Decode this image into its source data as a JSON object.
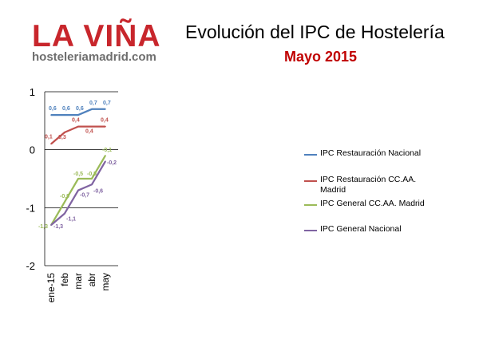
{
  "header": {
    "logo_main": "LA VIÑA",
    "logo_sub": "hosteleriamadrid.com",
    "title": "Evolución del IPC de Hostelería",
    "subtitle": "Mayo 2015"
  },
  "colors": {
    "logo_red": "#c8262c",
    "logo_gray": "#6e6e6e",
    "subtitle_red": "#c00000",
    "gridline": "#000000"
  },
  "chart_data": {
    "type": "line",
    "categories": [
      "ene-15",
      "feb",
      "mar",
      "abr",
      "may"
    ],
    "ylim": [
      -2,
      1
    ],
    "yticks": [
      1,
      0,
      -1,
      -2
    ],
    "ytick_labels": [
      "1",
      "0",
      "-1",
      "-2"
    ],
    "grid": true,
    "legend_position": "right",
    "title": "",
    "xlabel": "",
    "ylabel": "",
    "series": [
      {
        "name": "IPC Restauración Nacional",
        "color": "#4f81bd",
        "values": [
          0.6,
          0.6,
          0.6,
          0.7,
          0.7
        ],
        "labels": [
          "0,6",
          "0,6",
          "0,6",
          "0,7",
          "0,7"
        ]
      },
      {
        "name": "IPC Restauración CC.AA. Madrid",
        "color": "#c0504d",
        "values": [
          0.1,
          0.3,
          0.4,
          0.4,
          0.4
        ],
        "labels": [
          "0,1",
          "0,3",
          "0,4",
          "0,4",
          "0,4"
        ]
      },
      {
        "name": "IPC General CC.AA. Madrid",
        "color": "#9bbb59",
        "values": [
          -1.3,
          -0.9,
          -0.5,
          -0.5,
          -0.1
        ],
        "labels": [
          "-1,3",
          "-0,9",
          "-0,5",
          "-0,5",
          "-0,1"
        ]
      },
      {
        "name": "IPC General Nacional",
        "color": "#8064a2",
        "values": [
          -1.3,
          -1.1,
          -0.7,
          -0.6,
          -0.2
        ],
        "labels": [
          "-1,3",
          "-1,1",
          "-0,7",
          "-0,6",
          "-0,2"
        ]
      }
    ]
  }
}
